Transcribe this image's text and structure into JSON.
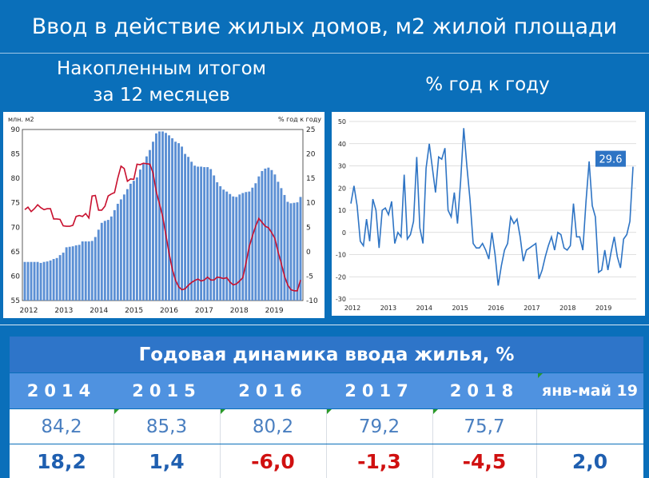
{
  "page": {
    "title": "Ввод в действие жилых домов, м2 жилой площади",
    "left_heading_line1": "Накопленным итогом",
    "left_heading_line2": "за 12 месяцев",
    "right_heading": "% год к году"
  },
  "chart_data": [
    {
      "type": "bar",
      "left_axis_label": "млн. м2",
      "right_axis_label": "% год к году",
      "x_ticks": [
        "2012",
        "2013",
        "2014",
        "2015",
        "2016",
        "2017",
        "2018",
        "2019"
      ],
      "ylim_left": [
        55,
        90
      ],
      "left_ticks": [
        "90",
        "85",
        "80",
        "75",
        "70",
        "65",
        "60",
        "55"
      ],
      "ylim_right": [
        -10,
        25
      ],
      "right_ticks": [
        "25",
        "20",
        "15",
        "10",
        "5",
        "0",
        "-5",
        "-10"
      ],
      "series": [
        {
          "type": "bar",
          "axis": "left",
          "color": "#5b8fd4",
          "values": [
            62.9,
            62.9,
            62.9,
            62.9,
            62.9,
            62.7,
            62.9,
            63.0,
            63.2,
            63.5,
            63.7,
            64.3,
            64.8,
            65.9,
            66.0,
            66.1,
            66.3,
            66.4,
            67.1,
            67.1,
            67.1,
            67.2,
            68.0,
            69.5,
            70.9,
            71.3,
            71.5,
            72.2,
            73.5,
            74.8,
            75.7,
            76.7,
            77.8,
            78.9,
            79.5,
            80.2,
            81.8,
            83.1,
            84.5,
            85.8,
            87.5,
            89.2,
            89.6,
            89.6,
            89.3,
            88.8,
            88.2,
            87.5,
            87.2,
            86.5,
            85.0,
            84.4,
            83.4,
            82.6,
            82.4,
            82.4,
            82.3,
            82.3,
            81.9,
            80.6,
            79.2,
            78.4,
            77.7,
            77.3,
            76.8,
            76.3,
            76.2,
            76.7,
            77.0,
            77.2,
            77.3,
            78.1,
            79.0,
            80.4,
            81.5,
            82.0,
            82.2,
            81.7,
            80.8,
            79.3,
            78.0,
            76.6,
            75.2,
            74.9,
            75.0,
            75.1,
            76.2
          ]
        },
        {
          "type": "line",
          "axis": "right",
          "color": "#c8102e",
          "values": [
            8.6,
            9.1,
            8.2,
            8.8,
            9.6,
            9.0,
            8.6,
            8.8,
            8.8,
            6.7,
            6.7,
            6.6,
            5.3,
            5.2,
            5.2,
            5.4,
            7.2,
            7.4,
            7.2,
            7.8,
            6.9,
            11.4,
            11.5,
            8.5,
            8.5,
            9.3,
            11.4,
            11.8,
            12.1,
            15.0,
            17.5,
            17.0,
            14.4,
            14.9,
            14.8,
            17.9,
            17.8,
            18.1,
            18.0,
            17.9,
            16.1,
            12.3,
            9.8,
            7.2,
            3.5,
            -0.3,
            -3.5,
            -5.8,
            -7.2,
            -7.8,
            -7.6,
            -6.9,
            -6.3,
            -5.9,
            -5.6,
            -6.0,
            -5.8,
            -5.2,
            -5.8,
            -5.8,
            -5.2,
            -5.3,
            -5.5,
            -5.3,
            -6.2,
            -6.8,
            -6.6,
            -6.0,
            -5.3,
            -2.3,
            1.0,
            3.2,
            5.2,
            6.8,
            6.0,
            5.2,
            4.9,
            3.9,
            2.7,
            0.0,
            -2.4,
            -5.0,
            -6.8,
            -7.8,
            -8.0,
            -8.0,
            -5.8
          ]
        }
      ]
    },
    {
      "type": "line",
      "x_ticks": [
        "2012",
        "2013",
        "2014",
        "2015",
        "2016",
        "2017",
        "2018",
        "2019"
      ],
      "ylim": [
        -30,
        50
      ],
      "y_ticks": [
        "50",
        "40",
        "30",
        "20",
        "10",
        "0",
        "-10",
        "-20",
        "-30"
      ],
      "grid": true,
      "last_value_label": "29.6",
      "series": [
        {
          "color": "#2e74c4",
          "values": [
            13,
            21,
            12,
            -4,
            -6,
            6,
            -4,
            15,
            10,
            -7,
            10,
            11,
            8,
            14,
            -5,
            0,
            -2,
            26,
            -3,
            -1,
            5,
            34,
            2,
            -5,
            29,
            40,
            29,
            18,
            34,
            33,
            38,
            10,
            7,
            18,
            4,
            23,
            47,
            30,
            15,
            -5,
            -7,
            -7,
            -5,
            -8,
            -12,
            0,
            -10,
            -24,
            -15,
            -8,
            -5,
            7,
            4,
            6,
            -2,
            -13,
            -8,
            -7,
            -6,
            -5,
            -21,
            -17,
            -11,
            -6,
            -2,
            -8,
            0,
            -1,
            -7,
            -8,
            -6,
            13,
            -2,
            -2,
            -8,
            14,
            32,
            12,
            7,
            -18,
            -17,
            -8,
            -17,
            -9,
            -2,
            -11,
            -16,
            -3,
            -1,
            5,
            29.6
          ]
        }
      ]
    }
  ],
  "table": {
    "title": "Годовая динамика ввода жилья, %",
    "years": [
      "2014",
      "2015",
      "2016",
      "2017",
      "2018",
      "янв-май 19"
    ],
    "row1": [
      "84,2",
      "85,3",
      "80,2",
      "79,2",
      "75,7",
      ""
    ],
    "row2": [
      "18,2",
      "1,4",
      "-6,0",
      "-1,3",
      "-4,5",
      "2,0"
    ]
  }
}
